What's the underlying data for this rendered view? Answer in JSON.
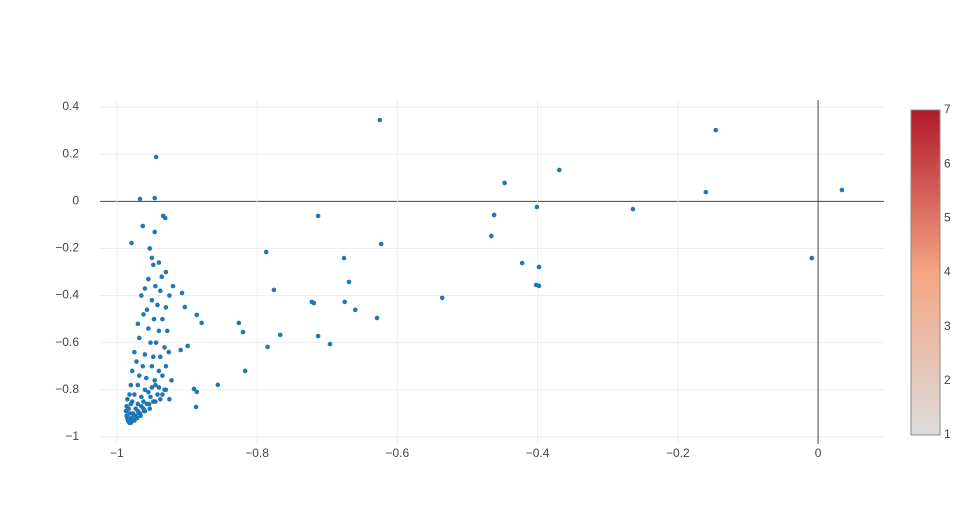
{
  "chart_data": {
    "type": "scatter",
    "color": "#1f77b4",
    "grid": true,
    "zeroline": true,
    "xlim": [
      -1.024,
      0.094
    ],
    "ylim": [
      -1.03,
      0.43
    ],
    "xticks": [
      {
        "value": -1,
        "label": "−1"
      },
      {
        "value": -0.8,
        "label": "−0.8"
      },
      {
        "value": -0.6,
        "label": "−0.6"
      },
      {
        "value": -0.4,
        "label": "−0.4"
      },
      {
        "value": -0.2,
        "label": "−0.2"
      },
      0
    ],
    "yticks": [
      0.4,
      0.2,
      0,
      {
        "value": -0.2,
        "label": "−0.2"
      },
      {
        "value": -0.4,
        "label": "−0.4"
      },
      {
        "value": -0.6,
        "label": "−0.6"
      },
      {
        "value": -0.8,
        "label": "−0.8"
      },
      {
        "value": -1,
        "label": "−1"
      }
    ],
    "x": [
      -0.625,
      -0.146,
      -0.944,
      -0.369,
      -0.447,
      0.034,
      -0.16,
      -0.967,
      -0.946,
      -0.401,
      -0.264,
      -0.462,
      -0.713,
      -0.934,
      -0.931,
      -0.963,
      -0.946,
      -0.466,
      -0.623,
      -0.979,
      -0.787,
      -0.009,
      -0.676,
      -0.422,
      -0.398,
      -0.669,
      -0.776,
      -0.402,
      -0.398,
      -0.536,
      -0.722,
      -0.719,
      -0.675,
      -0.66,
      -0.629,
      -0.826,
      -0.82,
      -0.767,
      -0.713,
      -0.785,
      -0.696,
      -0.817,
      -0.856,
      -0.89,
      -0.886,
      -0.887,
      -0.879,
      -0.886,
      -0.907,
      -0.903,
      -0.899,
      -0.909,
      -0.953,
      -0.95,
      -0.948,
      -0.94,
      -0.93,
      -0.936,
      -0.955,
      -0.945,
      -0.96,
      -0.938,
      -0.925,
      -0.92,
      -0.965,
      -0.95,
      -0.942,
      -0.957,
      -0.93,
      -0.962,
      -0.947,
      -0.935,
      -0.97,
      -0.955,
      -0.94,
      -0.928,
      -0.968,
      -0.952,
      -0.944,
      -0.932,
      -0.975,
      -0.96,
      -0.948,
      -0.938,
      -0.926,
      -0.972,
      -0.963,
      -0.95,
      -0.94,
      -0.93,
      -0.978,
      -0.968,
      -0.958,
      -0.946,
      -0.935,
      -0.922,
      -0.98,
      -0.97,
      -0.96,
      -0.95,
      -0.94,
      -0.93,
      -0.982,
      -0.975,
      -0.965,
      -0.955,
      -0.945,
      -0.935,
      -0.925,
      -0.985,
      -0.978,
      -0.97,
      -0.962,
      -0.952,
      -0.942,
      -0.932,
      -0.986,
      -0.98,
      -0.973,
      -0.965,
      -0.957,
      -0.948,
      -0.938,
      -0.987,
      -0.983,
      -0.977,
      -0.97,
      -0.962,
      -0.954,
      -0.945,
      -0.986,
      -0.982,
      -0.976,
      -0.969,
      -0.961,
      -0.953,
      -0.985,
      -0.98,
      -0.974,
      -0.967,
      -0.96,
      -0.984,
      -0.979,
      -0.972,
      -0.966,
      -0.982,
      -0.977,
      -0.971,
      -0.98,
      -0.975,
      -0.983
    ],
    "y": [
      0.345,
      0.302,
      0.188,
      0.133,
      0.078,
      0.048,
      0.039,
      0.01,
      0.014,
      -0.024,
      -0.033,
      -0.058,
      -0.062,
      -0.062,
      -0.071,
      -0.105,
      -0.13,
      -0.147,
      -0.181,
      -0.177,
      -0.215,
      -0.241,
      -0.241,
      -0.262,
      -0.279,
      -0.342,
      -0.376,
      -0.355,
      -0.359,
      -0.41,
      -0.427,
      -0.432,
      -0.427,
      -0.461,
      -0.495,
      -0.516,
      -0.555,
      -0.567,
      -0.572,
      -0.618,
      -0.606,
      -0.72,
      -0.779,
      -0.796,
      -0.809,
      -0.873,
      -0.516,
      -0.482,
      -0.389,
      -0.449,
      -0.614,
      -0.631,
      -0.2,
      -0.24,
      -0.27,
      -0.26,
      -0.3,
      -0.32,
      -0.33,
      -0.36,
      -0.37,
      -0.38,
      -0.4,
      -0.36,
      -0.4,
      -0.42,
      -0.44,
      -0.46,
      -0.45,
      -0.48,
      -0.5,
      -0.5,
      -0.52,
      -0.54,
      -0.55,
      -0.55,
      -0.58,
      -0.6,
      -0.6,
      -0.62,
      -0.64,
      -0.65,
      -0.66,
      -0.66,
      -0.64,
      -0.68,
      -0.7,
      -0.7,
      -0.72,
      -0.7,
      -0.72,
      -0.74,
      -0.75,
      -0.76,
      -0.74,
      -0.76,
      -0.78,
      -0.78,
      -0.8,
      -0.79,
      -0.79,
      -0.8,
      -0.82,
      -0.82,
      -0.83,
      -0.81,
      -0.78,
      -0.82,
      -0.84,
      -0.84,
      -0.85,
      -0.86,
      -0.85,
      -0.83,
      -0.82,
      -0.8,
      -0.87,
      -0.86,
      -0.88,
      -0.87,
      -0.86,
      -0.85,
      -0.84,
      -0.89,
      -0.88,
      -0.9,
      -0.89,
      -0.88,
      -0.86,
      -0.85,
      -0.91,
      -0.9,
      -0.91,
      -0.9,
      -0.89,
      -0.88,
      -0.92,
      -0.92,
      -0.91,
      -0.9,
      -0.89,
      -0.93,
      -0.93,
      -0.92,
      -0.91,
      -0.94,
      -0.93,
      -0.92,
      -0.94,
      -0.93,
      -0.935
    ],
    "colorbar": {
      "range": [
        1,
        7
      ],
      "ticks": [
        1,
        2,
        3,
        4,
        5,
        6,
        7
      ],
      "colors": [
        "#dcdcdc",
        "#f4a582",
        "#b2182b"
      ]
    }
  }
}
